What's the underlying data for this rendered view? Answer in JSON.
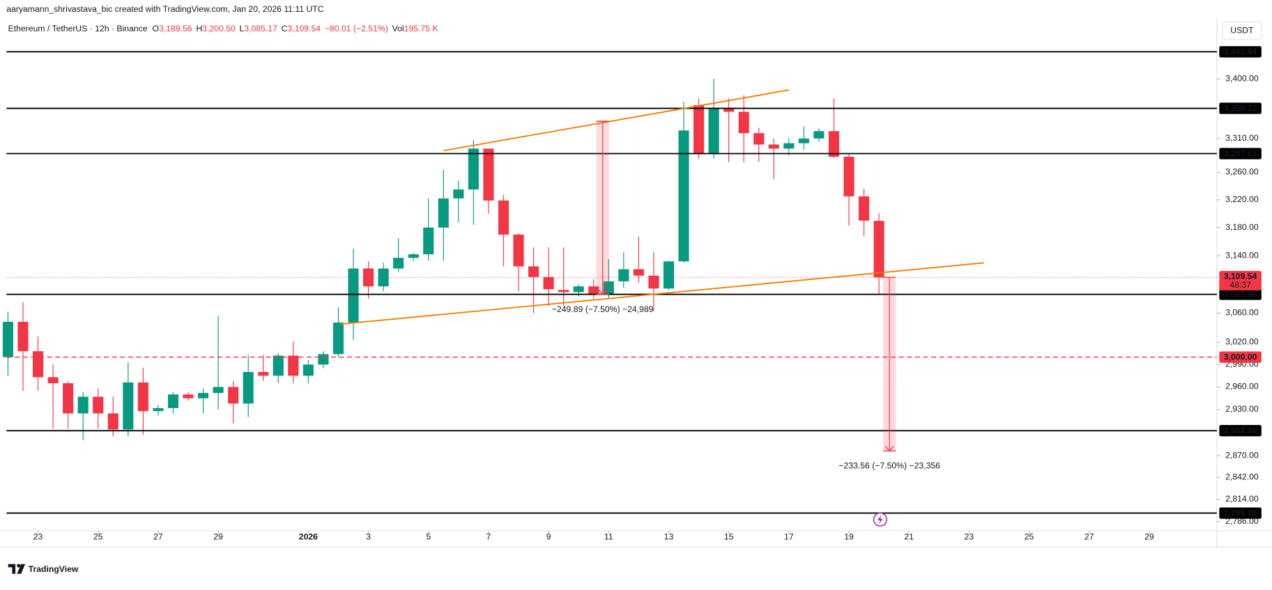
{
  "chart_data": {
    "type": "candlestick",
    "watermark": "aaryamann_shrivastava_bic created with TradingView.com, Jan 20, 2026 11:11 UTC",
    "legend": {
      "symbol": "Ethereum / TetherUS · 12h · Binance",
      "items": [
        {
          "key": "O",
          "text": "3,189.56"
        },
        {
          "key": "H",
          "text": "3,200.50"
        },
        {
          "key": "L",
          "text": "3,085.17"
        },
        {
          "key": "C",
          "text": "3,109.54"
        }
      ],
      "change": "−80.01 (−2.51%)",
      "volume_key": "Vol",
      "volume": "195.75 K"
    },
    "currency": "USDT",
    "footer": "TradingView",
    "up_color": "#089981",
    "down_color": "#f23645",
    "log_scale": true,
    "grid": false,
    "xlim": [
      -0.1,
      80.5
    ],
    "ylim": [
      2774.5,
      3487
    ],
    "xticks": [
      {
        "value": 2,
        "label": "23"
      },
      {
        "value": 6,
        "label": "25"
      },
      {
        "value": 10,
        "label": "27"
      },
      {
        "value": 14,
        "label": "29"
      },
      {
        "value": 20,
        "label": "2026"
      },
      {
        "value": 24,
        "label": "3"
      },
      {
        "value": 28,
        "label": "5"
      },
      {
        "value": 32,
        "label": "7"
      },
      {
        "value": 36,
        "label": "9"
      },
      {
        "value": 40,
        "label": "11"
      },
      {
        "value": 44,
        "label": "13"
      },
      {
        "value": 48,
        "label": "15"
      },
      {
        "value": 52,
        "label": "17"
      },
      {
        "value": 56,
        "label": "19"
      },
      {
        "value": 60,
        "label": "21"
      },
      {
        "value": 64,
        "label": "23"
      },
      {
        "value": 68,
        "label": "25"
      },
      {
        "value": 72,
        "label": "27"
      },
      {
        "value": 76,
        "label": "29"
      }
    ],
    "yticks": [
      {
        "value": 3400,
        "label": "3,400.00"
      },
      {
        "value": 3310,
        "label": "3,310.00"
      },
      {
        "value": 3260,
        "label": "3,260.00"
      },
      {
        "value": 3220,
        "label": "3,220.00"
      },
      {
        "value": 3180,
        "label": "3,180.00"
      },
      {
        "value": 3140,
        "label": "3,140.00"
      },
      {
        "value": 3060,
        "label": "3,060.00"
      },
      {
        "value": 3020,
        "label": "3,020.00"
      },
      {
        "value": 2990,
        "label": "2,990.00"
      },
      {
        "value": 2960,
        "label": "2,960.00"
      },
      {
        "value": 2930,
        "label": "2,930.00"
      },
      {
        "value": 2870,
        "label": "2,870.00"
      },
      {
        "value": 2842,
        "label": "2,842.00"
      },
      {
        "value": 2814,
        "label": "2,814.00"
      },
      {
        "value": 2786,
        "label": "2,786.00"
      }
    ],
    "levels": [
      {
        "value": 3441.64,
        "label": "3,441.64",
        "color": "#000000",
        "dashed": false
      },
      {
        "value": 3355.22,
        "label": "3,355.22",
        "color": "#000000",
        "dashed": false
      },
      {
        "value": 3287.61,
        "label": "3,287.61",
        "color": "#000000",
        "dashed": false
      },
      {
        "value": 3085.96,
        "label": "3,085.96",
        "color": "#000000",
        "dashed": false
      },
      {
        "value": 3000,
        "label": "3,000.00",
        "color": "#f23645",
        "dashed": true
      },
      {
        "value": 2902.36,
        "label": "2,902.36",
        "color": "#000000",
        "dashed": false
      },
      {
        "value": 2796.72,
        "label": "2,796.72",
        "color": "#000000",
        "dashed": false
      }
    ],
    "last_price": {
      "value": 3109.54,
      "label": "3,109.54",
      "countdown": "48:37",
      "color": "#f23645"
    },
    "trendlines": [
      {
        "color": "#f57c00",
        "x": [
          29,
          52
        ],
        "y": [
          3292,
          3383
        ]
      },
      {
        "color": "#f57c00",
        "x": [
          22.2,
          65
        ],
        "y": [
          3045,
          3130
        ]
      }
    ],
    "measures": [
      {
        "x": 39.6,
        "from": 3335.85,
        "to": 3085.96,
        "label": "−249.89 (−7.50%) −24,989"
      },
      {
        "x": 58.7,
        "from": 3109.54,
        "to": 2875.98,
        "label": "−233.56 (−7.50%) −23,356"
      }
    ],
    "candles": [
      {
        "open": 3000,
        "high": 3062,
        "low": 2975,
        "close": 3048
      },
      {
        "open": 3048,
        "high": 3075,
        "low": 2955,
        "close": 3008
      },
      {
        "open": 3008,
        "high": 3028,
        "low": 2955,
        "close": 2973
      },
      {
        "open": 2973,
        "high": 2990,
        "low": 2905,
        "close": 2965
      },
      {
        "open": 2965,
        "high": 2968,
        "low": 2905,
        "close": 2925
      },
      {
        "open": 2925,
        "high": 2953,
        "low": 2890,
        "close": 2947
      },
      {
        "open": 2947,
        "high": 2958,
        "low": 2905,
        "close": 2925
      },
      {
        "open": 2925,
        "high": 2947,
        "low": 2895,
        "close": 2904
      },
      {
        "open": 2904,
        "high": 2993,
        "low": 2895,
        "close": 2966
      },
      {
        "open": 2966,
        "high": 2986,
        "low": 2897,
        "close": 2928
      },
      {
        "open": 2928,
        "high": 2936,
        "low": 2922,
        "close": 2932
      },
      {
        "open": 2932,
        "high": 2953,
        "low": 2925,
        "close": 2950
      },
      {
        "open": 2950,
        "high": 2953,
        "low": 2942,
        "close": 2945
      },
      {
        "open": 2945,
        "high": 2958,
        "low": 2925,
        "close": 2952
      },
      {
        "open": 2952,
        "high": 3056,
        "low": 2930,
        "close": 2960
      },
      {
        "open": 2960,
        "high": 2968,
        "low": 2912,
        "close": 2938
      },
      {
        "open": 2938,
        "high": 3003,
        "low": 2920,
        "close": 2980
      },
      {
        "open": 2980,
        "high": 3003,
        "low": 2968,
        "close": 2975
      },
      {
        "open": 2975,
        "high": 3005,
        "low": 2965,
        "close": 3002
      },
      {
        "open": 3002,
        "high": 3021,
        "low": 2965,
        "close": 2975
      },
      {
        "open": 2975,
        "high": 2996,
        "low": 2965,
        "close": 2990
      },
      {
        "open": 2990,
        "high": 3008,
        "low": 2985,
        "close": 3004
      },
      {
        "open": 3004,
        "high": 3068,
        "low": 3000,
        "close": 3047
      },
      {
        "open": 3047,
        "high": 3150,
        "low": 3023,
        "close": 3122
      },
      {
        "open": 3122,
        "high": 3132,
        "low": 3080,
        "close": 3097
      },
      {
        "open": 3097,
        "high": 3130,
        "low": 3090,
        "close": 3122
      },
      {
        "open": 3122,
        "high": 3165,
        "low": 3117,
        "close": 3137
      },
      {
        "open": 3137,
        "high": 3144,
        "low": 3133,
        "close": 3142
      },
      {
        "open": 3142,
        "high": 3222,
        "low": 3133,
        "close": 3180
      },
      {
        "open": 3180,
        "high": 3264,
        "low": 3133,
        "close": 3222
      },
      {
        "open": 3222,
        "high": 3248,
        "low": 3187,
        "close": 3235
      },
      {
        "open": 3235,
        "high": 3308,
        "low": 3184,
        "close": 3295
      },
      {
        "open": 3295,
        "high": 3295,
        "low": 3200,
        "close": 3219
      },
      {
        "open": 3219,
        "high": 3227,
        "low": 3125,
        "close": 3170
      },
      {
        "open": 3170,
        "high": 3172,
        "low": 3090,
        "close": 3125
      },
      {
        "open": 3125,
        "high": 3152,
        "low": 3060,
        "close": 3110
      },
      {
        "open": 3110,
        "high": 3152,
        "low": 3070,
        "close": 3093
      },
      {
        "open": 3092,
        "high": 3152,
        "low": 3070,
        "close": 3089
      },
      {
        "open": 3089,
        "high": 3100,
        "low": 3083,
        "close": 3097
      },
      {
        "open": 3097,
        "high": 3107,
        "low": 3080,
        "close": 3086
      },
      {
        "open": 3086,
        "high": 3135,
        "low": 3080,
        "close": 3104
      },
      {
        "open": 3104,
        "high": 3145,
        "low": 3095,
        "close": 3121
      },
      {
        "open": 3121,
        "high": 3167,
        "low": 3102,
        "close": 3112
      },
      {
        "open": 3112,
        "high": 3145,
        "low": 3063,
        "close": 3094
      },
      {
        "open": 3094,
        "high": 3133,
        "low": 3092,
        "close": 3132
      },
      {
        "open": 3132,
        "high": 3365,
        "low": 3130,
        "close": 3322
      },
      {
        "open": 3360,
        "high": 3370,
        "low": 3280,
        "close": 3287
      },
      {
        "open": 3287,
        "high": 3400,
        "low": 3280,
        "close": 3355
      },
      {
        "open": 3355,
        "high": 3370,
        "low": 3275,
        "close": 3350
      },
      {
        "open": 3350,
        "high": 3375,
        "low": 3275,
        "close": 3318
      },
      {
        "open": 3318,
        "high": 3326,
        "low": 3275,
        "close": 3301
      },
      {
        "open": 3301,
        "high": 3310,
        "low": 3250,
        "close": 3295
      },
      {
        "open": 3295,
        "high": 3310,
        "low": 3285,
        "close": 3303
      },
      {
        "open": 3303,
        "high": 3328,
        "low": 3293,
        "close": 3310
      },
      {
        "open": 3310,
        "high": 3325,
        "low": 3305,
        "close": 3321
      },
      {
        "open": 3321,
        "high": 3370,
        "low": 3281,
        "close": 3283
      },
      {
        "open": 3283,
        "high": 3287,
        "low": 3183,
        "close": 3225
      },
      {
        "open": 3225,
        "high": 3236,
        "low": 3168,
        "close": 3190
      },
      {
        "open": 3189.56,
        "high": 3200.5,
        "low": 3085.17,
        "close": 3109.54
      }
    ]
  }
}
